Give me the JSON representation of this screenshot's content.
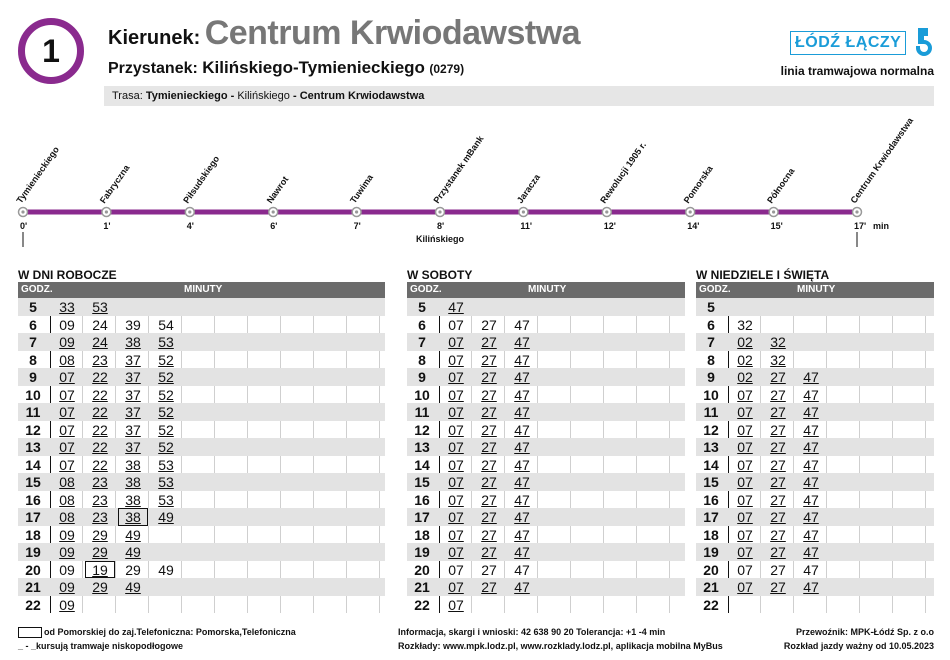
{
  "header": {
    "line_number": "1",
    "direction_label": "Kierunek:",
    "direction": "Centrum Krwiodawstwa",
    "stop_label": "Przystanek:",
    "stop_name": "Kilińskiego-Tymienieckiego",
    "stop_code": "(0279)",
    "route_label": "Trasa:",
    "route_parts": [
      "Tymienieckiego - ",
      "Kilińskiego",
      " - Centrum Krwiodawstwa"
    ]
  },
  "brand": {
    "logo_text": "ŁÓDŹ ŁĄCZY",
    "subtitle": "linia tramwajowa normalna",
    "color": "#1a9cd8"
  },
  "route": {
    "stops": [
      {
        "name": "Tymienieckiego",
        "time": "0'"
      },
      {
        "name": "Fabryczna",
        "time": "1'"
      },
      {
        "name": "Piłsudskiego",
        "time": "4'"
      },
      {
        "name": "Nawrot",
        "time": "6'"
      },
      {
        "name": "Tuwima",
        "time": "7'"
      },
      {
        "name": "Przystanek mBank",
        "time": "8'"
      },
      {
        "name": "Jaracza",
        "time": "11'"
      },
      {
        "name": "Rewolucji 1905 r.",
        "time": "12'"
      },
      {
        "name": "Pomorska",
        "time": "14'"
      },
      {
        "name": "Północna",
        "time": "15'"
      },
      {
        "name": "Centrum Krwiodawstwa",
        "time": "17'"
      }
    ],
    "current_stop_name": "Kilińskiego",
    "min_label": "min",
    "line_color": "#8a2a8e"
  },
  "tables": [
    {
      "title": "W DNI ROBOCZE",
      "godz_label": "GODZ.",
      "minuty_label": "MINUTY",
      "rows": [
        {
          "h": "5",
          "m": [
            [
              "33",
              1
            ],
            [
              "53",
              1
            ]
          ]
        },
        {
          "h": "6",
          "m": [
            [
              "09",
              0
            ],
            [
              "24",
              0
            ],
            [
              "39",
              0
            ],
            [
              "54",
              0
            ]
          ]
        },
        {
          "h": "7",
          "m": [
            [
              "09",
              1
            ],
            [
              "24",
              1
            ],
            [
              "38",
              1
            ],
            [
              "53",
              1
            ]
          ]
        },
        {
          "h": "8",
          "m": [
            [
              "08",
              1
            ],
            [
              "23",
              1
            ],
            [
              "37",
              1
            ],
            [
              "52",
              1
            ]
          ]
        },
        {
          "h": "9",
          "m": [
            [
              "07",
              1
            ],
            [
              "22",
              1
            ],
            [
              "37",
              1
            ],
            [
              "52",
              1
            ]
          ]
        },
        {
          "h": "10",
          "m": [
            [
              "07",
              1
            ],
            [
              "22",
              1
            ],
            [
              "37",
              1
            ],
            [
              "52",
              1
            ]
          ]
        },
        {
          "h": "11",
          "m": [
            [
              "07",
              1
            ],
            [
              "22",
              1
            ],
            [
              "37",
              1
            ],
            [
              "52",
              1
            ]
          ]
        },
        {
          "h": "12",
          "m": [
            [
              "07",
              1
            ],
            [
              "22",
              1
            ],
            [
              "37",
              1
            ],
            [
              "52",
              1
            ]
          ]
        },
        {
          "h": "13",
          "m": [
            [
              "07",
              1
            ],
            [
              "22",
              1
            ],
            [
              "37",
              1
            ],
            [
              "52",
              1
            ]
          ]
        },
        {
          "h": "14",
          "m": [
            [
              "07",
              1
            ],
            [
              "22",
              1
            ],
            [
              "38",
              1
            ],
            [
              "53",
              1
            ]
          ]
        },
        {
          "h": "15",
          "m": [
            [
              "08",
              1
            ],
            [
              "23",
              1
            ],
            [
              "38",
              1
            ],
            [
              "53",
              1
            ]
          ]
        },
        {
          "h": "16",
          "m": [
            [
              "08",
              1
            ],
            [
              "23",
              1
            ],
            [
              "38",
              1
            ],
            [
              "53",
              1
            ]
          ]
        },
        {
          "h": "17",
          "m": [
            [
              "08",
              1
            ],
            [
              "23",
              1
            ],
            [
              "38",
              2
            ],
            [
              "49",
              1
            ]
          ]
        },
        {
          "h": "18",
          "m": [
            [
              "09",
              1
            ],
            [
              "29",
              1
            ],
            [
              "49",
              1
            ]
          ]
        },
        {
          "h": "19",
          "m": [
            [
              "09",
              1
            ],
            [
              "29",
              1
            ],
            [
              "49",
              1
            ]
          ]
        },
        {
          "h": "20",
          "m": [
            [
              "09",
              0
            ],
            [
              "19",
              2
            ],
            [
              "29",
              0
            ],
            [
              "49",
              0
            ]
          ]
        },
        {
          "h": "21",
          "m": [
            [
              "09",
              1
            ],
            [
              "29",
              1
            ],
            [
              "49",
              1
            ]
          ]
        },
        {
          "h": "22",
          "m": [
            [
              "09",
              1
            ]
          ]
        }
      ]
    },
    {
      "title": "W SOBOTY",
      "godz_label": "GODZ.",
      "minuty_label": "MINUTY",
      "rows": [
        {
          "h": "5",
          "m": [
            [
              "47",
              1
            ]
          ]
        },
        {
          "h": "6",
          "m": [
            [
              "07",
              0
            ],
            [
              "27",
              0
            ],
            [
              "47",
              0
            ]
          ]
        },
        {
          "h": "7",
          "m": [
            [
              "07",
              1
            ],
            [
              "27",
              1
            ],
            [
              "47",
              1
            ]
          ]
        },
        {
          "h": "8",
          "m": [
            [
              "07",
              1
            ],
            [
              "27",
              1
            ],
            [
              "47",
              1
            ]
          ]
        },
        {
          "h": "9",
          "m": [
            [
              "07",
              1
            ],
            [
              "27",
              1
            ],
            [
              "47",
              1
            ]
          ]
        },
        {
          "h": "10",
          "m": [
            [
              "07",
              1
            ],
            [
              "27",
              1
            ],
            [
              "47",
              1
            ]
          ]
        },
        {
          "h": "11",
          "m": [
            [
              "07",
              1
            ],
            [
              "27",
              1
            ],
            [
              "47",
              1
            ]
          ]
        },
        {
          "h": "12",
          "m": [
            [
              "07",
              1
            ],
            [
              "27",
              1
            ],
            [
              "47",
              1
            ]
          ]
        },
        {
          "h": "13",
          "m": [
            [
              "07",
              1
            ],
            [
              "27",
              1
            ],
            [
              "47",
              1
            ]
          ]
        },
        {
          "h": "14",
          "m": [
            [
              "07",
              1
            ],
            [
              "27",
              1
            ],
            [
              "47",
              1
            ]
          ]
        },
        {
          "h": "15",
          "m": [
            [
              "07",
              1
            ],
            [
              "27",
              1
            ],
            [
              "47",
              1
            ]
          ]
        },
        {
          "h": "16",
          "m": [
            [
              "07",
              1
            ],
            [
              "27",
              1
            ],
            [
              "47",
              1
            ]
          ]
        },
        {
          "h": "17",
          "m": [
            [
              "07",
              1
            ],
            [
              "27",
              1
            ],
            [
              "47",
              1
            ]
          ]
        },
        {
          "h": "18",
          "m": [
            [
              "07",
              1
            ],
            [
              "27",
              1
            ],
            [
              "47",
              1
            ]
          ]
        },
        {
          "h": "19",
          "m": [
            [
              "07",
              1
            ],
            [
              "27",
              1
            ],
            [
              "47",
              1
            ]
          ]
        },
        {
          "h": "20",
          "m": [
            [
              "07",
              0
            ],
            [
              "27",
              0
            ],
            [
              "47",
              0
            ]
          ]
        },
        {
          "h": "21",
          "m": [
            [
              "07",
              1
            ],
            [
              "27",
              1
            ],
            [
              "47",
              1
            ]
          ]
        },
        {
          "h": "22",
          "m": [
            [
              "07",
              1
            ]
          ]
        }
      ]
    },
    {
      "title": "W NIEDZIELE I ŚWIĘTA",
      "godz_label": "GODZ.",
      "minuty_label": "MINUTY",
      "rows": [
        {
          "h": "5",
          "m": []
        },
        {
          "h": "6",
          "m": [
            [
              "32",
              0
            ]
          ]
        },
        {
          "h": "7",
          "m": [
            [
              "02",
              1
            ],
            [
              "32",
              1
            ]
          ]
        },
        {
          "h": "8",
          "m": [
            [
              "02",
              1
            ],
            [
              "32",
              1
            ]
          ]
        },
        {
          "h": "9",
          "m": [
            [
              "02",
              1
            ],
            [
              "27",
              1
            ],
            [
              "47",
              1
            ]
          ]
        },
        {
          "h": "10",
          "m": [
            [
              "07",
              1
            ],
            [
              "27",
              1
            ],
            [
              "47",
              1
            ]
          ]
        },
        {
          "h": "11",
          "m": [
            [
              "07",
              1
            ],
            [
              "27",
              1
            ],
            [
              "47",
              1
            ]
          ]
        },
        {
          "h": "12",
          "m": [
            [
              "07",
              1
            ],
            [
              "27",
              1
            ],
            [
              "47",
              1
            ]
          ]
        },
        {
          "h": "13",
          "m": [
            [
              "07",
              1
            ],
            [
              "27",
              1
            ],
            [
              "47",
              1
            ]
          ]
        },
        {
          "h": "14",
          "m": [
            [
              "07",
              1
            ],
            [
              "27",
              1
            ],
            [
              "47",
              1
            ]
          ]
        },
        {
          "h": "15",
          "m": [
            [
              "07",
              1
            ],
            [
              "27",
              1
            ],
            [
              "47",
              1
            ]
          ]
        },
        {
          "h": "16",
          "m": [
            [
              "07",
              1
            ],
            [
              "27",
              1
            ],
            [
              "47",
              1
            ]
          ]
        },
        {
          "h": "17",
          "m": [
            [
              "07",
              1
            ],
            [
              "27",
              1
            ],
            [
              "47",
              1
            ]
          ]
        },
        {
          "h": "18",
          "m": [
            [
              "07",
              1
            ],
            [
              "27",
              1
            ],
            [
              "47",
              1
            ]
          ]
        },
        {
          "h": "19",
          "m": [
            [
              "07",
              1
            ],
            [
              "27",
              1
            ],
            [
              "47",
              1
            ]
          ]
        },
        {
          "h": "20",
          "m": [
            [
              "07",
              0
            ],
            [
              "27",
              0
            ],
            [
              "47",
              0
            ]
          ]
        },
        {
          "h": "21",
          "m": [
            [
              "07",
              1
            ],
            [
              "27",
              1
            ],
            [
              "47",
              1
            ]
          ]
        },
        {
          "h": "22",
          "m": []
        }
      ]
    }
  ],
  "footer": {
    "legend_box_text": "od Pomorskiej do zaj.Telefoniczna: Pomorska,Telefoniczna",
    "legend_underline_text": "_ - _kursują tramwaje niskopodłogowe",
    "info_line1": "Informacja, skargi i wnioski: 42 638 90 20 Tolerancja: +1 -4 min",
    "info_line2": "Rozkłady: www.mpk.lodz.pl, www.rozklady.lodz.pl, aplikacja mobilna MyBus",
    "carrier": "Przewoźnik: MPK-Łódź Sp. z o.o",
    "valid_from": "Rozkład jazdy ważny od 10.05.2023"
  }
}
